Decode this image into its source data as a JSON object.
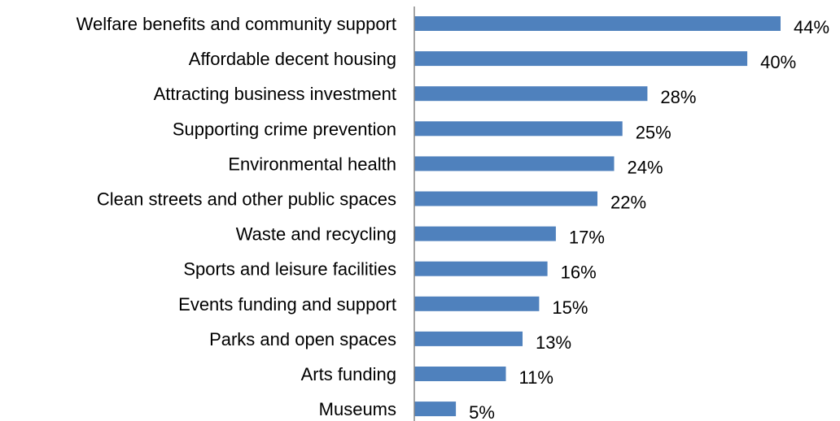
{
  "chart_data": {
    "type": "bar",
    "orientation": "horizontal",
    "categories": [
      "Welfare benefits and community support",
      "Affordable decent housing",
      "Attracting business investment",
      "Supporting crime prevention",
      "Environmental health",
      "Clean streets and other public spaces",
      "Waste and recycling",
      "Sports and leisure facilities",
      "Events funding and support",
      "Parks and open spaces",
      "Arts funding",
      "Museums"
    ],
    "values": [
      44,
      40,
      28,
      25,
      24,
      22,
      17,
      16,
      15,
      13,
      11,
      5
    ],
    "value_labels": [
      "44%",
      "40%",
      "28%",
      "25%",
      "24%",
      "22%",
      "17%",
      "16%",
      "15%",
      "13%",
      "11%",
      "5%"
    ],
    "unit": "%",
    "bar_color": "#4f81bd",
    "axis_color": "#868686",
    "xlim": [
      0,
      44
    ],
    "grid": false,
    "legend": "none"
  }
}
